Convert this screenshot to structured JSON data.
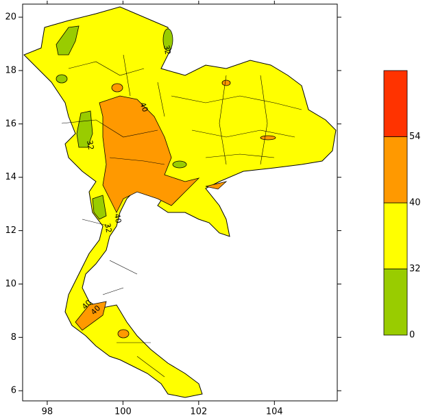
{
  "chart_data": {
    "type": "map",
    "xlim": [
      97.35,
      105.66
    ],
    "ylim": [
      5.62,
      20.49
    ],
    "xticks": [
      98,
      100,
      102,
      104
    ],
    "yticks": [
      6,
      8,
      10,
      12,
      14,
      16,
      18,
      20
    ],
    "contour_labels": [
      "40",
      "40",
      "32",
      "32",
      "32",
      "40",
      "40"
    ],
    "colorbar": {
      "levels": [
        0,
        32,
        40,
        54
      ],
      "colors": [
        "#99cc00",
        "#ffff00",
        "#ff9900",
        "#ff3300"
      ]
    }
  }
}
